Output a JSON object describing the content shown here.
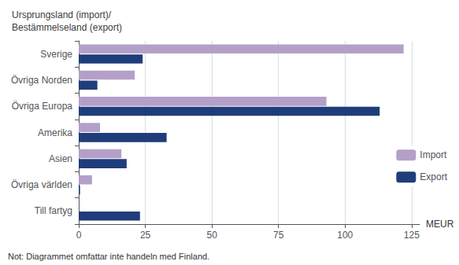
{
  "chart_data": {
    "type": "bar",
    "orientation": "horizontal",
    "title": "Ursprungsland (import)/\nBestämmelseland (export)",
    "xlabel": "MEUR",
    "annotations": [
      "Not: Diagrammet omfattar inte handeln med Finland."
    ],
    "categories": [
      "Sverige",
      "Övriga Norden",
      "Övriga Europa",
      "Amerika",
      "Asien",
      "Övriga världen",
      "Till fartyg"
    ],
    "series": [
      {
        "name": "Import",
        "color": "#b3a0c8",
        "values": [
          122,
          21,
          93,
          8,
          16,
          5,
          0
        ]
      },
      {
        "name": "Export",
        "color": "#1f3d7a",
        "values": [
          24,
          7,
          113,
          33,
          18,
          0.5,
          23
        ]
      }
    ],
    "xlim": [
      0,
      128
    ],
    "xticks": [
      0,
      25,
      50,
      75,
      100,
      125
    ],
    "grid": true,
    "legend": "right"
  }
}
